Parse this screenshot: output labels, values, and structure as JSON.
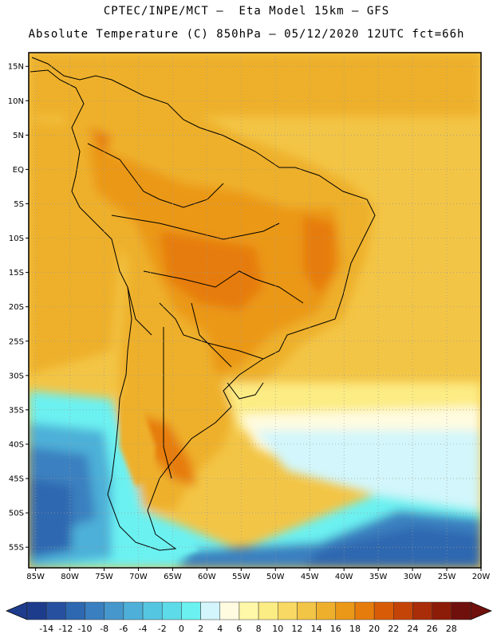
{
  "header": {
    "line1": "CPTEC/INPE/MCT —  Eta Model 15km — GFS",
    "line2": "Absolute Temperature (C) 850hPa — 05/12/2020 12UTC fct=66h"
  },
  "map": {
    "lat_labels": [
      "15N",
      "10N",
      "5N",
      "EQ",
      "5S",
      "10S",
      "15S",
      "20S",
      "25S",
      "30S",
      "35S",
      "40S",
      "45S",
      "50S",
      "55S"
    ],
    "lon_labels": [
      "85W",
      "80W",
      "75W",
      "70W",
      "65W",
      "60W",
      "55W",
      "50W",
      "45W",
      "40W",
      "35W",
      "30W",
      "25W",
      "20W"
    ],
    "lat_values": [
      15,
      10,
      5,
      0,
      -5,
      -10,
      -15,
      -20,
      -25,
      -30,
      -35,
      -40,
      -45,
      -50,
      -55
    ],
    "lon_values": [
      -85,
      -80,
      -75,
      -70,
      -65,
      -60,
      -55,
      -50,
      -45,
      -40,
      -35,
      -30,
      -25,
      -20
    ],
    "extent": {
      "lon_min": -86,
      "lon_max": -20,
      "lat_min": -58,
      "lat_max": 17
    }
  },
  "colorbar": {
    "labels": [
      "-14",
      "-12",
      "-10",
      "-8",
      "-6",
      "-4",
      "-2",
      "0",
      "2",
      "4",
      "6",
      "8",
      "10",
      "12",
      "14",
      "16",
      "18",
      "20",
      "22",
      "24",
      "26",
      "28"
    ],
    "colors": [
      "#1e3c8c",
      "#27519f",
      "#2d68b0",
      "#3a80c0",
      "#4597cc",
      "#4eb0d8",
      "#55c6e2",
      "#5edbe9",
      "#6cf1f1",
      "#d2f6fb",
      "#fefbe0",
      "#fef8a8",
      "#fcec84",
      "#f8d963",
      "#f3c546",
      "#eeb02c",
      "#eb9818",
      "#e67c0c",
      "#d85c08",
      "#c44408",
      "#a82d08",
      "#8c1c08",
      "#70100c"
    ]
  }
}
